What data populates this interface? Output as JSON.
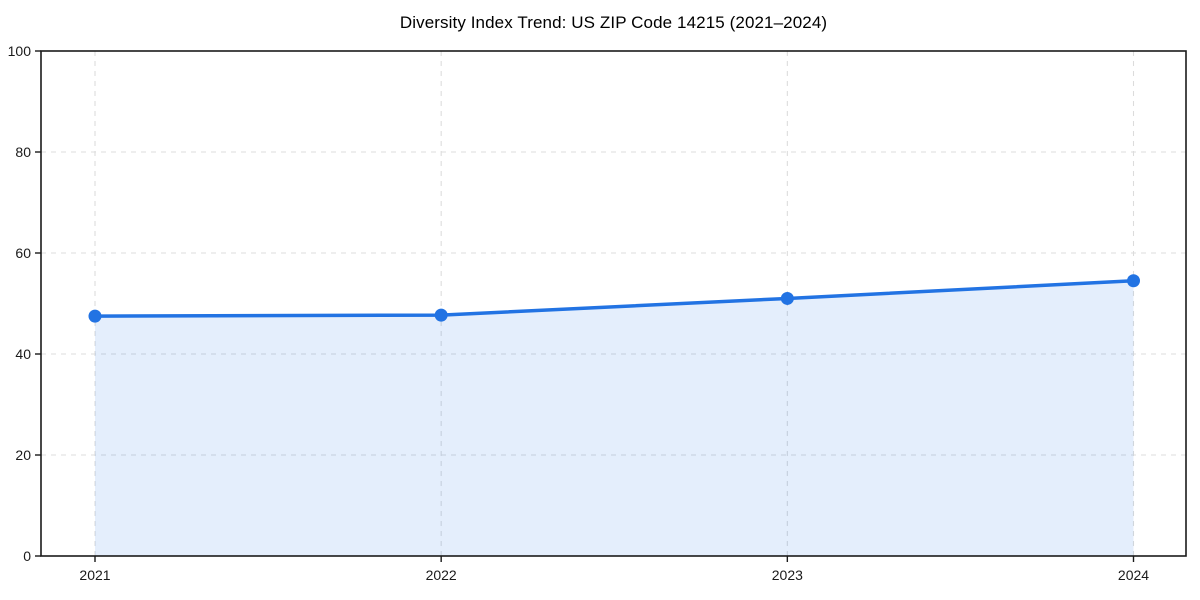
{
  "chart_data": {
    "type": "area",
    "title": "Diversity Index Trend: US ZIP Code 14215 (2021–2024)",
    "x": [
      2021,
      2022,
      2023,
      2024
    ],
    "categories": [
      "2021",
      "2022",
      "2023",
      "2024"
    ],
    "series": [
      {
        "name": "Diversity Index",
        "values": [
          47.5,
          47.7,
          51.0,
          54.5
        ]
      }
    ],
    "xlabel": "",
    "ylabel": "",
    "ylim": [
      0,
      100
    ],
    "yticks": [
      0,
      20,
      40,
      60,
      80,
      100
    ],
    "grid": true,
    "grid_style": "dashed",
    "legend": false,
    "colors": {
      "line": "#2273e3",
      "marker": "#2273e3",
      "area_fill": "rgba(34,115,227,0.12)",
      "grid": "#dcdcdc",
      "axis": "#1a1a1a",
      "tick_label": "#1a1a1a",
      "title": "#000000",
      "background": "#ffffff"
    }
  }
}
